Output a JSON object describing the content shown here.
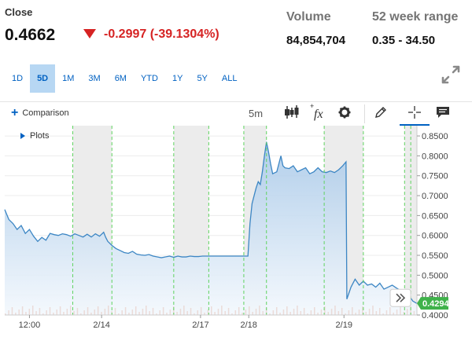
{
  "quote": {
    "label": "Close",
    "price": "0.4662",
    "change": "-0.2997 (-39.1304%)",
    "volume_label": "Volume",
    "volume_value": "84,854,704",
    "range_label": "52 week range",
    "range_value": "0.35 - 34.50",
    "down_color": "#d62323"
  },
  "ranges": [
    "1D",
    "5D",
    "1M",
    "3M",
    "6M",
    "YTD",
    "1Y",
    "5Y",
    "ALL"
  ],
  "active_range": "5D",
  "toolbar": {
    "comparison_label": "Comparison",
    "interval": "5m",
    "icons": [
      "candlestick-icon",
      "function-icon",
      "gear-icon",
      "pencil-icon",
      "crosshair-icon",
      "comment-icon"
    ]
  },
  "plots_label": "Plots",
  "chart_data": {
    "type": "area",
    "y_ticks": [
      "0.8500",
      "0.8000",
      "0.7500",
      "0.7000",
      "0.6500",
      "0.6000",
      "0.5500",
      "0.5000",
      "0.4500",
      "0.4000"
    ],
    "ylim": [
      0.4,
      0.86
    ],
    "x_ticks": [
      {
        "label": "12:00",
        "pos": 0.06
      },
      {
        "label": "2/14",
        "pos": 0.235
      },
      {
        "label": "2/17",
        "pos": 0.475
      },
      {
        "label": "2/18",
        "pos": 0.592
      },
      {
        "label": "2/19",
        "pos": 0.823
      }
    ],
    "last_value": "0.4294",
    "last_value_num": 0.4294,
    "line_color": "#3c86c4",
    "fill_color": "#d6e6f5",
    "points": [
      [
        0.0,
        0.665
      ],
      [
        0.01,
        0.64
      ],
      [
        0.02,
        0.63
      ],
      [
        0.03,
        0.615
      ],
      [
        0.04,
        0.625
      ],
      [
        0.05,
        0.605
      ],
      [
        0.06,
        0.615
      ],
      [
        0.07,
        0.598
      ],
      [
        0.08,
        0.585
      ],
      [
        0.09,
        0.595
      ],
      [
        0.1,
        0.588
      ],
      [
        0.11,
        0.605
      ],
      [
        0.12,
        0.602
      ],
      [
        0.13,
        0.6
      ],
      [
        0.14,
        0.604
      ],
      [
        0.15,
        0.602
      ],
      [
        0.16,
        0.598
      ],
      [
        0.17,
        0.604
      ],
      [
        0.18,
        0.6
      ],
      [
        0.19,
        0.596
      ],
      [
        0.2,
        0.603
      ],
      [
        0.21,
        0.596
      ],
      [
        0.22,
        0.604
      ],
      [
        0.23,
        0.598
      ],
      [
        0.24,
        0.608
      ],
      [
        0.245,
        0.595
      ],
      [
        0.25,
        0.585
      ],
      [
        0.26,
        0.575
      ],
      [
        0.27,
        0.567
      ],
      [
        0.28,
        0.562
      ],
      [
        0.29,
        0.557
      ],
      [
        0.3,
        0.555
      ],
      [
        0.31,
        0.56
      ],
      [
        0.32,
        0.553
      ],
      [
        0.33,
        0.551
      ],
      [
        0.34,
        0.55
      ],
      [
        0.35,
        0.552
      ],
      [
        0.36,
        0.548
      ],
      [
        0.37,
        0.546
      ],
      [
        0.38,
        0.544
      ],
      [
        0.39,
        0.546
      ],
      [
        0.4,
        0.548
      ],
      [
        0.41,
        0.545
      ],
      [
        0.42,
        0.548
      ],
      [
        0.43,
        0.546
      ],
      [
        0.44,
        0.546
      ],
      [
        0.45,
        0.548
      ],
      [
        0.46,
        0.547
      ],
      [
        0.47,
        0.547
      ],
      [
        0.48,
        0.548
      ],
      [
        0.5,
        0.548
      ],
      [
        0.52,
        0.548
      ],
      [
        0.54,
        0.548
      ],
      [
        0.56,
        0.548
      ],
      [
        0.58,
        0.548
      ],
      [
        0.59,
        0.548
      ],
      [
        0.595,
        0.63
      ],
      [
        0.6,
        0.68
      ],
      [
        0.605,
        0.7
      ],
      [
        0.61,
        0.72
      ],
      [
        0.615,
        0.735
      ],
      [
        0.62,
        0.728
      ],
      [
        0.625,
        0.76
      ],
      [
        0.63,
        0.8
      ],
      [
        0.635,
        0.835
      ],
      [
        0.64,
        0.81
      ],
      [
        0.645,
        0.78
      ],
      [
        0.65,
        0.755
      ],
      [
        0.66,
        0.76
      ],
      [
        0.67,
        0.8
      ],
      [
        0.675,
        0.775
      ],
      [
        0.68,
        0.77
      ],
      [
        0.69,
        0.768
      ],
      [
        0.7,
        0.775
      ],
      [
        0.71,
        0.76
      ],
      [
        0.72,
        0.765
      ],
      [
        0.73,
        0.77
      ],
      [
        0.74,
        0.755
      ],
      [
        0.75,
        0.76
      ],
      [
        0.76,
        0.77
      ],
      [
        0.77,
        0.76
      ],
      [
        0.78,
        0.758
      ],
      [
        0.79,
        0.762
      ],
      [
        0.8,
        0.758
      ],
      [
        0.81,
        0.765
      ],
      [
        0.82,
        0.775
      ],
      [
        0.828,
        0.785
      ],
      [
        0.83,
        0.44
      ],
      [
        0.84,
        0.47
      ],
      [
        0.85,
        0.49
      ],
      [
        0.86,
        0.475
      ],
      [
        0.87,
        0.485
      ],
      [
        0.88,
        0.475
      ],
      [
        0.89,
        0.478
      ],
      [
        0.9,
        0.47
      ],
      [
        0.91,
        0.48
      ],
      [
        0.92,
        0.465
      ],
      [
        0.93,
        0.47
      ],
      [
        0.94,
        0.475
      ],
      [
        0.95,
        0.468
      ],
      [
        0.96,
        0.462
      ],
      [
        0.97,
        0.455
      ],
      [
        0.98,
        0.45
      ],
      [
        0.99,
        0.435
      ],
      [
        1.0,
        0.429
      ]
    ],
    "shaded_ranges": [
      [
        0.165,
        0.26
      ],
      [
        0.41,
        0.495
      ],
      [
        0.58,
        0.635
      ],
      [
        0.775,
        0.87
      ],
      [
        0.97,
        1.0
      ]
    ],
    "dashed_lines": [
      0.165,
      0.26,
      0.41,
      0.495,
      0.58,
      0.635,
      0.775,
      0.87,
      0.97,
      0.985
    ]
  }
}
